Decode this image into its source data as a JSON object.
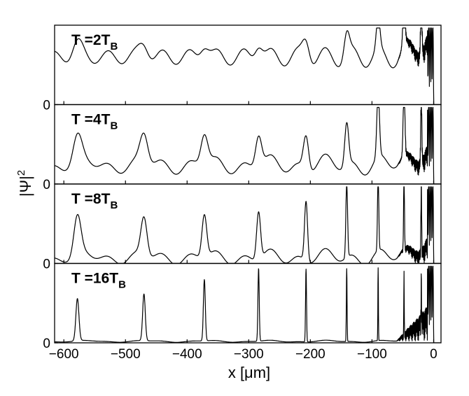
{
  "chart_data": {
    "type": "line",
    "xlabel": "x [μm]",
    "ylabel": "|Ψ|²",
    "ylabel_base": "|Ψ|",
    "ylabel_exp": "2",
    "xlim": [
      -615,
      12
    ],
    "xticks": [
      -600,
      -500,
      -400,
      -300,
      -200,
      -100,
      0
    ],
    "xtick_labels": [
      "−600",
      "−500",
      "−400",
      "−300",
      "−200",
      "−100",
      "0"
    ],
    "grid": false,
    "legend": "none",
    "panels": [
      {
        "label_main": "T =2T",
        "label_sub": "B",
        "y_zero_label": "0",
        "baseline": 0.62,
        "osc_amp": 0.15,
        "envelope": 0.0,
        "peaks": [
          {
            "x": -578,
            "h": 0.18,
            "w": 11
          },
          {
            "x": -470,
            "h": 0.19,
            "w": 11
          },
          {
            "x": -372,
            "h": 0.2,
            "w": 10
          },
          {
            "x": -284,
            "h": 0.22,
            "w": 9
          },
          {
            "x": -207,
            "h": 0.25,
            "w": 8
          },
          {
            "x": -141,
            "h": 0.3,
            "w": 6
          },
          {
            "x": -90,
            "h": 0.42,
            "w": 4
          },
          {
            "x": -48,
            "h": 0.6,
            "w": 2.5
          },
          {
            "x": -20,
            "h": 0.8,
            "w": 1.5
          }
        ]
      },
      {
        "label_main": "T =4T",
        "label_sub": "B",
        "y_zero_label": "0",
        "baseline": 0.25,
        "osc_amp": 0.1,
        "envelope": 0.06,
        "peaks": [
          {
            "x": -578,
            "h": 0.34,
            "w": 10
          },
          {
            "x": -470,
            "h": 0.38,
            "w": 9
          },
          {
            "x": -372,
            "h": 0.4,
            "w": 8
          },
          {
            "x": -284,
            "h": 0.41,
            "w": 7
          },
          {
            "x": -207,
            "h": 0.44,
            "w": 6
          },
          {
            "x": -141,
            "h": 0.55,
            "w": 4.5
          },
          {
            "x": -90,
            "h": 0.85,
            "w": 3
          },
          {
            "x": -48,
            "h": 0.9,
            "w": 2
          },
          {
            "x": -20,
            "h": 0.92,
            "w": 1.2
          }
        ]
      },
      {
        "label_main": "T =8T",
        "label_sub": "B",
        "y_zero_label": "0",
        "baseline": 0.08,
        "osc_amp": 0.08,
        "envelope": 0.05,
        "peaks": [
          {
            "x": -578,
            "h": 0.5,
            "w": 8
          },
          {
            "x": -470,
            "h": 0.5,
            "w": 7
          },
          {
            "x": -372,
            "h": 0.56,
            "w": 5.5
          },
          {
            "x": -284,
            "h": 0.62,
            "w": 4.5
          },
          {
            "x": -207,
            "h": 0.78,
            "w": 3.5
          },
          {
            "x": -141,
            "h": 0.95,
            "w": 2
          },
          {
            "x": -90,
            "h": 0.95,
            "w": 1.5
          },
          {
            "x": -48,
            "h": 0.95,
            "w": 1.0
          },
          {
            "x": -20,
            "h": 0.95,
            "w": 0.8
          }
        ]
      },
      {
        "label_main": "T =16T",
        "label_sub": "B",
        "y_zero_label": "0",
        "baseline": 0.02,
        "osc_amp": 0.006,
        "envelope": 0.01,
        "peaks": [
          {
            "x": -578,
            "h": 0.55,
            "w": 3.5
          },
          {
            "x": -470,
            "h": 0.61,
            "w": 3
          },
          {
            "x": -372,
            "h": 0.8,
            "w": 2.2
          },
          {
            "x": -284,
            "h": 0.95,
            "w": 1.5
          },
          {
            "x": -207,
            "h": 0.95,
            "w": 1.1
          },
          {
            "x": -141,
            "h": 0.95,
            "w": 0.8
          },
          {
            "x": -90,
            "h": 0.95,
            "w": 0.6
          },
          {
            "x": -48,
            "h": 0.8,
            "w": 0.5
          },
          {
            "x": -20,
            "h": 0.6,
            "w": 0.5
          }
        ]
      }
    ]
  }
}
